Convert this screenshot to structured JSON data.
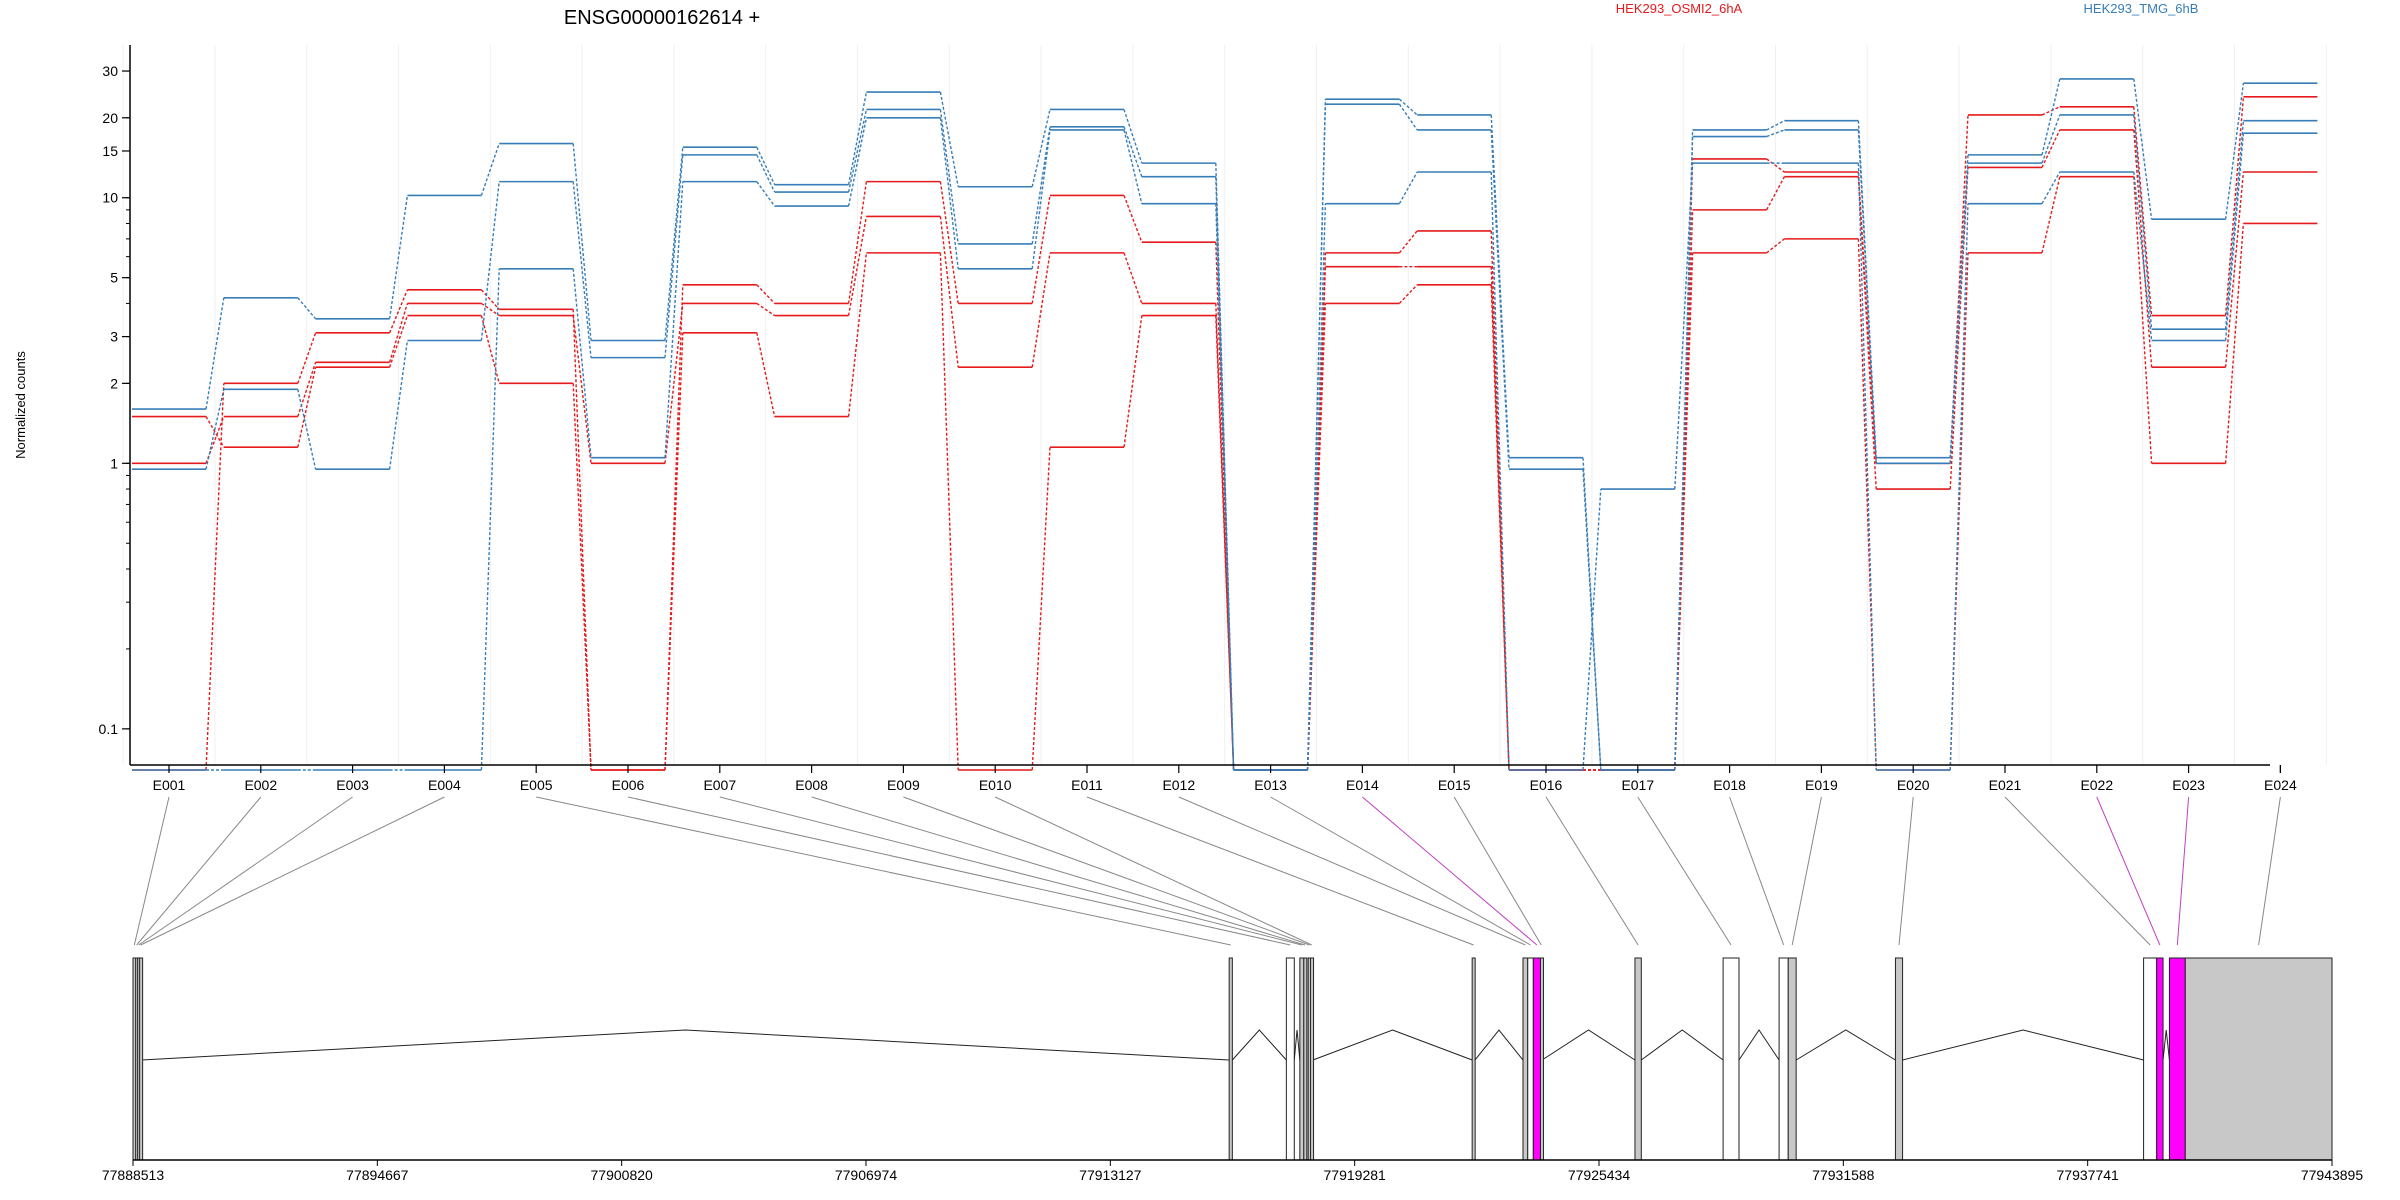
{
  "title": "ENSG00000162614 +",
  "ylabel": "Normalized counts",
  "legend": [
    {
      "name": "HEK293_OSMI2_6hA",
      "color": "#e41a1c"
    },
    {
      "name": "HEK293_TMG_6hB",
      "color": "#377eb8"
    }
  ],
  "chart_data": {
    "type": "line",
    "yscale": "log",
    "categories": [
      "E001",
      "E002",
      "E003",
      "E004",
      "E005",
      "E006",
      "E007",
      "E008",
      "E009",
      "E010",
      "E011",
      "E012",
      "E013",
      "E014",
      "E015",
      "E016",
      "E017",
      "E018",
      "E019",
      "E020",
      "E021",
      "E022",
      "E023",
      "E024"
    ],
    "y_ticks": [
      0.1,
      1,
      2,
      3,
      5,
      10,
      15,
      20,
      30
    ],
    "y_tick_labels": [
      "0.1",
      "1",
      "2",
      "3",
      "5",
      "10",
      "15",
      "20",
      "30"
    ],
    "zero_floor": 0.07,
    "ylim": [
      0.07,
      36
    ],
    "series": [
      {
        "group": "HEK293_OSMI2_6hA",
        "color": "#e41a1c",
        "values": [
          0.07,
          2.0,
          3.1,
          4.5,
          3.8,
          0.07,
          4.7,
          4.0,
          11.5,
          4.0,
          10.2,
          6.8,
          0.07,
          6.2,
          7.5,
          0.07,
          0.07,
          14.0,
          12.5,
          1.0,
          20.5,
          22.0,
          3.6,
          24.0
        ]
      },
      {
        "group": "HEK293_OSMI2_6hA",
        "color": "#e41a1c",
        "values": [
          1.0,
          1.5,
          2.4,
          4.0,
          3.6,
          1.0,
          4.0,
          3.6,
          8.5,
          2.3,
          6.2,
          4.0,
          0.07,
          5.5,
          5.5,
          0.07,
          0.07,
          9.0,
          12.0,
          0.8,
          13.0,
          18.0,
          2.3,
          12.5
        ]
      },
      {
        "group": "HEK293_OSMI2_6hA",
        "color": "#e41a1c",
        "values": [
          1.5,
          1.15,
          2.3,
          3.6,
          2.0,
          0.07,
          3.1,
          1.5,
          6.2,
          0.07,
          1.15,
          3.6,
          0.07,
          4.0,
          4.7,
          0.07,
          0.07,
          6.2,
          7.0,
          0.07,
          6.2,
          12.0,
          1.0,
          8.0
        ]
      },
      {
        "group": "HEK293_TMG_6hB",
        "color": "#377eb8",
        "values": [
          1.6,
          4.2,
          3.5,
          10.2,
          16.0,
          2.9,
          15.5,
          11.2,
          25.0,
          11.0,
          21.5,
          13.5,
          0.07,
          23.5,
          20.5,
          1.05,
          0.07,
          18.0,
          19.5,
          1.05,
          14.5,
          28.0,
          8.3,
          27.0
        ]
      },
      {
        "group": "HEK293_TMG_6hB",
        "color": "#377eb8",
        "values": [
          0.95,
          1.9,
          0.95,
          2.9,
          11.5,
          2.5,
          14.5,
          10.5,
          21.5,
          6.7,
          18.5,
          12.0,
          0.07,
          22.5,
          18.0,
          0.95,
          0.07,
          17.0,
          18.0,
          1.0,
          13.5,
          20.5,
          3.2,
          19.5
        ]
      },
      {
        "group": "HEK293_TMG_6hB",
        "color": "#377eb8",
        "values": [
          0.07,
          0.07,
          0.07,
          0.07,
          5.4,
          1.05,
          11.5,
          9.3,
          20.0,
          5.4,
          18.0,
          9.5,
          0.07,
          9.5,
          12.5,
          0.07,
          0.8,
          13.5,
          13.5,
          0.07,
          9.5,
          12.5,
          2.9,
          17.5
        ]
      }
    ],
    "genome_ticks": [
      "77888513",
      "77894667",
      "77900820",
      "77906974",
      "77913127",
      "77919281",
      "77925434",
      "77931588",
      "77937741",
      "77943895"
    ],
    "genome_range": [
      77888513,
      77943895
    ],
    "exons": [
      {
        "id": "E001",
        "start": 77888513,
        "end": 77888580,
        "fill": "#c8c8c8"
      },
      {
        "id": "E002",
        "start": 77888580,
        "end": 77888630,
        "fill": "#c8c8c8"
      },
      {
        "id": "E003",
        "start": 77888630,
        "end": 77888680,
        "fill": "#c8c8c8"
      },
      {
        "id": "E004",
        "start": 77888680,
        "end": 77888730,
        "fill": "#c8c8c8"
      },
      {
        "id": "E005",
        "start": 77916120,
        "end": 77916200,
        "fill": "#c8c8c8"
      },
      {
        "id": "E006",
        "start": 77917560,
        "end": 77917760,
        "fill": "#ffffff"
      },
      {
        "id": "E007",
        "start": 77917900,
        "end": 77918000,
        "fill": "#c8c8c8"
      },
      {
        "id": "E008",
        "start": 77918000,
        "end": 77918060,
        "fill": "#c8c8c8"
      },
      {
        "id": "E009",
        "start": 77918110,
        "end": 77918170,
        "fill": "#c8c8c8"
      },
      {
        "id": "E010",
        "start": 77918170,
        "end": 77918230,
        "fill": "#c8c8c8"
      },
      {
        "id": "E011",
        "start": 77922240,
        "end": 77922310,
        "fill": "#c8c8c8"
      },
      {
        "id": "E012",
        "start": 77923520,
        "end": 77923640,
        "fill": "#c8c8c8"
      },
      {
        "id": "E013",
        "start": 77923640,
        "end": 77923780,
        "fill": "#ffffff"
      },
      {
        "id": "E014",
        "start": 77923780,
        "end": 77923960,
        "fill": "#ff00ff"
      },
      {
        "id": "E015",
        "start": 77923960,
        "end": 77924000,
        "fill": "#c8c8c8"
      },
      {
        "id": "E016",
        "start": 77926340,
        "end": 77926500,
        "fill": "#c8c8c8"
      },
      {
        "id": "E017",
        "start": 77928560,
        "end": 77928960,
        "fill": "#ffffff"
      },
      {
        "id": "E018",
        "start": 77929970,
        "end": 77930200,
        "fill": "#ffffff"
      },
      {
        "id": "E019",
        "start": 77930200,
        "end": 77930400,
        "fill": "#c8c8c8"
      },
      {
        "id": "E020",
        "start": 77932900,
        "end": 77933080,
        "fill": "#c8c8c8"
      },
      {
        "id": "E021",
        "start": 77939150,
        "end": 77939480,
        "fill": "#ffffff"
      },
      {
        "id": "E022",
        "start": 77939480,
        "end": 77939640,
        "fill": "#ff00ff"
      },
      {
        "id": "E023",
        "start": 77939800,
        "end": 77940200,
        "fill": "#ff00ff"
      },
      {
        "id": "E024",
        "start": 77940200,
        "end": 77943895,
        "fill": "#c8c8c8"
      }
    ]
  }
}
